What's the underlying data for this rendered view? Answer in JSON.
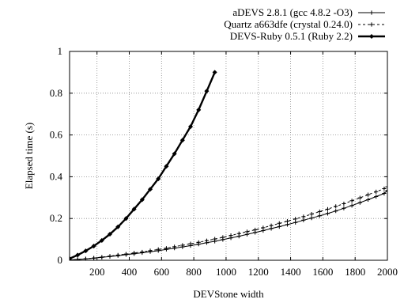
{
  "chart_data": {
    "type": "line",
    "title": "",
    "xlabel": "DEVStone width",
    "ylabel": "Elapsed time (s)",
    "xlim": [
      30,
      2000
    ],
    "ylim": [
      0,
      1
    ],
    "xticks": [
      200,
      400,
      600,
      800,
      1000,
      1200,
      1400,
      1600,
      1800,
      2000
    ],
    "xtick_labels": [
      "200",
      "400",
      "600",
      "800",
      "1000",
      "1200",
      "1400",
      "1600",
      "1800",
      "2000"
    ],
    "yticks": [
      0,
      0.2,
      0.4,
      0.6,
      0.8,
      1
    ],
    "ytick_labels": [
      "0",
      "0.2",
      "0.4",
      "0.6",
      "0.8",
      "1"
    ],
    "grid": true,
    "legend_position": "top-right-outside",
    "series": [
      {
        "name": "aDEVS 2.8.1 (gcc 4.8.2 -O3)",
        "style": "solid-thin",
        "marker": "plus",
        "color": "#000000",
        "x": [
          30,
          80,
          130,
          180,
          230,
          280,
          330,
          380,
          430,
          480,
          530,
          580,
          630,
          680,
          730,
          780,
          830,
          880,
          930,
          980,
          1030,
          1080,
          1130,
          1180,
          1230,
          1280,
          1330,
          1380,
          1430,
          1480,
          1530,
          1580,
          1630,
          1680,
          1730,
          1780,
          1830,
          1880,
          1930,
          1980,
          2000
        ],
        "y": [
          0.002,
          0.004,
          0.007,
          0.01,
          0.014,
          0.018,
          0.022,
          0.027,
          0.031,
          0.036,
          0.041,
          0.046,
          0.052,
          0.058,
          0.064,
          0.07,
          0.077,
          0.084,
          0.091,
          0.099,
          0.107,
          0.115,
          0.124,
          0.133,
          0.142,
          0.152,
          0.161,
          0.171,
          0.181,
          0.192,
          0.202,
          0.213,
          0.224,
          0.236,
          0.249,
          0.262,
          0.276,
          0.29,
          0.305,
          0.32,
          0.334
        ]
      },
      {
        "name": "Quartz a663dfe (crystal 0.24.0)",
        "style": "dashed",
        "marker": "plus",
        "color": "#000000",
        "x": [
          30,
          80,
          130,
          180,
          230,
          280,
          330,
          380,
          430,
          480,
          530,
          580,
          630,
          680,
          730,
          780,
          830,
          880,
          930,
          980,
          1030,
          1080,
          1130,
          1180,
          1230,
          1280,
          1330,
          1380,
          1430,
          1480,
          1530,
          1580,
          1630,
          1680,
          1730,
          1780,
          1830,
          1880,
          1930,
          1980,
          2000
        ],
        "y": [
          0.002,
          0.004,
          0.007,
          0.011,
          0.015,
          0.02,
          0.025,
          0.03,
          0.035,
          0.04,
          0.046,
          0.052,
          0.058,
          0.065,
          0.072,
          0.079,
          0.086,
          0.094,
          0.102,
          0.11,
          0.119,
          0.128,
          0.137,
          0.146,
          0.156,
          0.166,
          0.177,
          0.187,
          0.198,
          0.209,
          0.221,
          0.233,
          0.245,
          0.258,
          0.271,
          0.285,
          0.299,
          0.314,
          0.328,
          0.343,
          0.352
        ]
      },
      {
        "name": "DEVS-Ruby 0.5.1 (Ruby 2.2)",
        "style": "solid-thick",
        "marker": "diamond",
        "color": "#000000",
        "x": [
          30,
          80,
          130,
          180,
          230,
          280,
          330,
          380,
          430,
          480,
          530,
          580,
          630,
          680,
          730,
          780,
          830,
          880,
          930
        ],
        "y": [
          0.008,
          0.025,
          0.045,
          0.068,
          0.095,
          0.125,
          0.16,
          0.2,
          0.245,
          0.29,
          0.34,
          0.39,
          0.45,
          0.51,
          0.575,
          0.64,
          0.72,
          0.81,
          0.9
        ]
      }
    ]
  }
}
